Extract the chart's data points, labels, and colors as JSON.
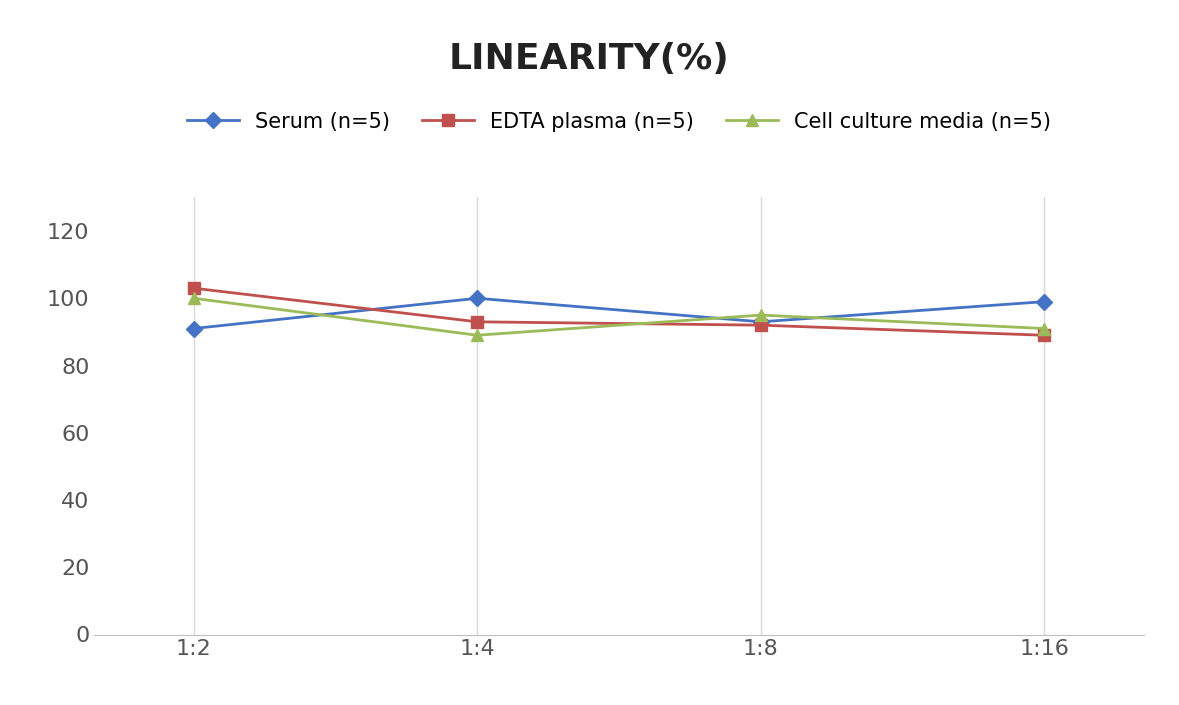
{
  "title": "LINEARITY(%)",
  "x_labels": [
    "1:2",
    "1:4",
    "1:8",
    "1:16"
  ],
  "x_positions": [
    0,
    1,
    2,
    3
  ],
  "series": [
    {
      "name": "Serum (n=5)",
      "values": [
        91,
        100,
        93,
        99
      ],
      "color": "#4472C4",
      "marker": "D",
      "linewidth": 2,
      "markersize": 8
    },
    {
      "name": "EDTA plasma (n=5)",
      "values": [
        103,
        93,
        92,
        89
      ],
      "color": "#C0504D",
      "marker": "s",
      "linewidth": 2,
      "markersize": 8
    },
    {
      "name": "Cell culture media (n=5)",
      "values": [
        100,
        89,
        95,
        91
      ],
      "color": "#9BBB59",
      "marker": "^",
      "linewidth": 2,
      "markersize": 8
    }
  ],
  "ylim": [
    0,
    130
  ],
  "yticks": [
    0,
    20,
    40,
    60,
    80,
    100,
    120
  ],
  "background_color": "#ffffff",
  "grid_color": "#d9d9d9",
  "title_fontsize": 26,
  "tick_fontsize": 16,
  "legend_fontsize": 15
}
